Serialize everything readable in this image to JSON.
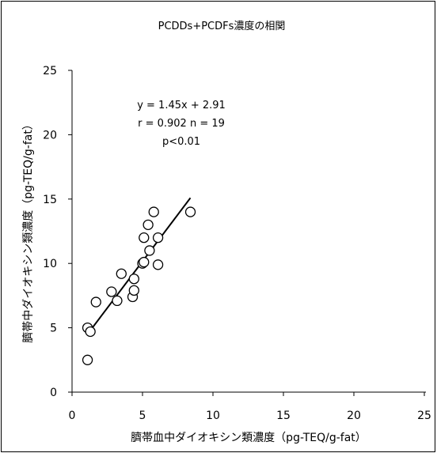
{
  "chart_data": {
    "type": "scatter",
    "title": "PCDDs+PCDFs濃度の相関",
    "xlabel": "臍帯血中ダイオキシン類濃度（pg-TEQ/g-fat）",
    "ylabel": "臍帯中ダイオキシン類濃度（pg-TEQ/g-fat）",
    "xlim": [
      0,
      25
    ],
    "ylim": [
      0,
      25
    ],
    "xticks": [
      0,
      5,
      10,
      15,
      20,
      25
    ],
    "yticks": [
      0,
      5,
      10,
      15,
      20,
      25
    ],
    "grid": false,
    "marker": "open-circle",
    "points": [
      {
        "x": 1.1,
        "y": 2.5
      },
      {
        "x": 1.1,
        "y": 5.0
      },
      {
        "x": 1.3,
        "y": 4.7
      },
      {
        "x": 1.7,
        "y": 7.0
      },
      {
        "x": 2.8,
        "y": 7.8
      },
      {
        "x": 3.2,
        "y": 7.1
      },
      {
        "x": 3.5,
        "y": 9.2
      },
      {
        "x": 4.3,
        "y": 7.4
      },
      {
        "x": 4.4,
        "y": 7.9
      },
      {
        "x": 4.4,
        "y": 8.8
      },
      {
        "x": 5.0,
        "y": 10.0
      },
      {
        "x": 5.1,
        "y": 12.0
      },
      {
        "x": 5.1,
        "y": 10.1
      },
      {
        "x": 5.4,
        "y": 13.0
      },
      {
        "x": 5.5,
        "y": 11.0
      },
      {
        "x": 5.8,
        "y": 14.0
      },
      {
        "x": 6.1,
        "y": 12.0
      },
      {
        "x": 6.1,
        "y": 9.9
      },
      {
        "x": 8.4,
        "y": 14.0
      }
    ],
    "regression": {
      "slope": 1.45,
      "intercept": 2.91,
      "x_range": [
        1.2,
        8.4
      ]
    },
    "annotations": [
      "y = 1.45x + 2.91",
      "r = 0.902  n = 19",
      "p<0.01"
    ]
  }
}
